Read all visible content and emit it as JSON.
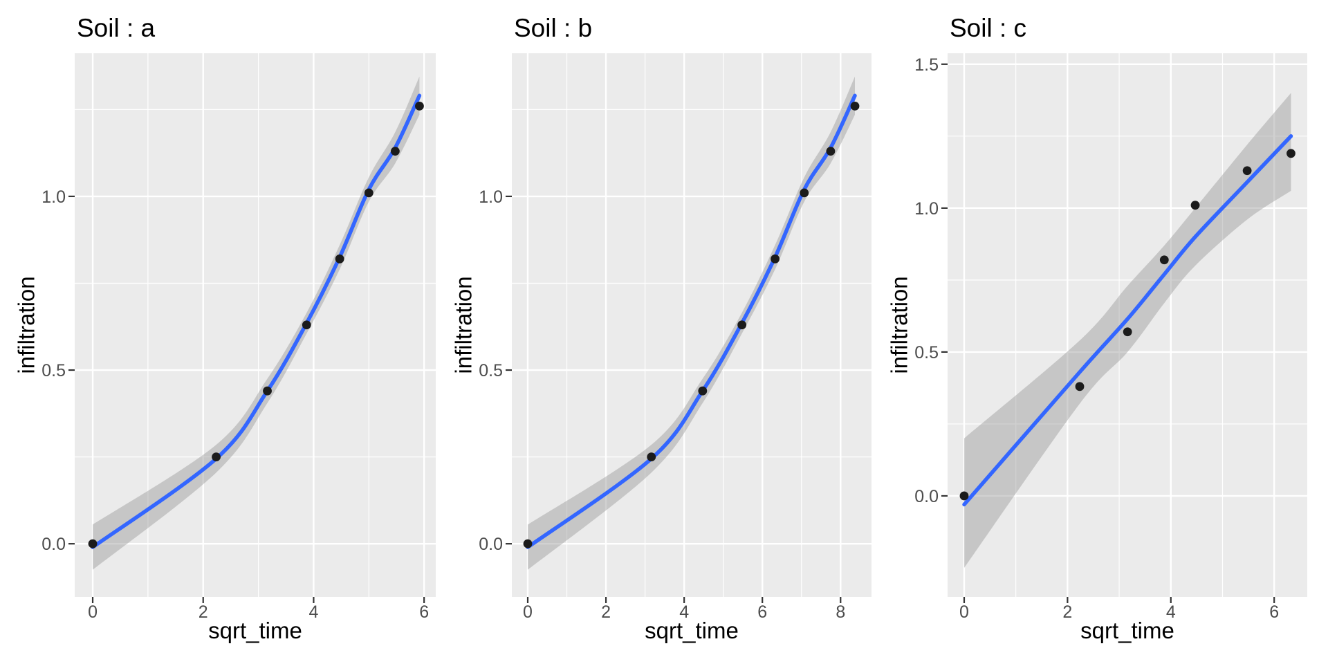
{
  "figure": {
    "background": "#ffffff",
    "grid": true,
    "legend": "none"
  },
  "colors": {
    "panel_bg": "#ebebeb",
    "grid": "#ffffff",
    "point": "#1b1b1b",
    "smooth_line": "#3366ff",
    "ribbon": "#999999",
    "ribbon_opacity": 0.45,
    "tick_mark": "#333333",
    "tick_label": "#4d4d4d",
    "axis_title": "#000000",
    "title": "#000000"
  },
  "chart_data": [
    {
      "type": "scatter",
      "title": "Soil : a",
      "xlabel": "sqrt_time",
      "ylabel": "infiltration",
      "x": [
        0,
        2.236,
        3.162,
        3.873,
        4.472,
        5.0,
        5.477,
        5.916
      ],
      "y": [
        0,
        0.25,
        0.44,
        0.63,
        0.82,
        1.01,
        1.13,
        1.26
      ],
      "smooth": {
        "x": [
          0,
          2.236,
          3.162,
          3.873,
          4.472,
          5.0,
          5.477,
          5.916
        ],
        "y": [
          -0.01,
          0.245,
          0.44,
          0.635,
          0.825,
          1.02,
          1.14,
          1.29
        ],
        "lo": [
          -0.075,
          0.205,
          0.405,
          0.605,
          0.79,
          0.985,
          1.095,
          1.235
        ],
        "hi": [
          0.055,
          0.285,
          0.475,
          0.665,
          0.86,
          1.055,
          1.185,
          1.345
        ]
      },
      "xlim": [
        -0.326,
        6.211
      ],
      "ylim": [
        -0.153,
        1.412
      ],
      "xticks": [
        0,
        2,
        4,
        6
      ],
      "xtick_labels": [
        "0",
        "2",
        "4",
        "6"
      ],
      "xminor": [
        1,
        3,
        5
      ],
      "yticks": [
        0,
        0.5,
        1.0
      ],
      "ytick_labels": [
        "0.0",
        "0.5",
        "1.0"
      ],
      "yminor": [
        0.25,
        0.75,
        1.25
      ]
    },
    {
      "type": "scatter",
      "title": "Soil : b",
      "xlabel": "sqrt_time",
      "ylabel": "infiltration",
      "x": [
        0,
        3.162,
        4.472,
        5.477,
        6.325,
        7.071,
        7.746,
        8.367
      ],
      "y": [
        0,
        0.25,
        0.44,
        0.63,
        0.82,
        1.01,
        1.13,
        1.26
      ],
      "smooth": {
        "x": [
          0,
          3.162,
          4.472,
          5.477,
          6.325,
          7.071,
          7.746,
          8.367
        ],
        "y": [
          -0.01,
          0.245,
          0.44,
          0.635,
          0.825,
          1.02,
          1.14,
          1.29
        ],
        "lo": [
          -0.075,
          0.205,
          0.405,
          0.605,
          0.79,
          0.985,
          1.095,
          1.235
        ],
        "hi": [
          0.055,
          0.285,
          0.475,
          0.665,
          0.86,
          1.055,
          1.185,
          1.345
        ]
      },
      "xlim": [
        -0.407,
        8.791
      ],
      "ylim": [
        -0.153,
        1.412
      ],
      "xticks": [
        0,
        2,
        4,
        6,
        8
      ],
      "xtick_labels": [
        "0",
        "2",
        "4",
        "6",
        "8"
      ],
      "xminor": [
        1,
        3,
        5,
        7
      ],
      "yticks": [
        0,
        0.5,
        1.0
      ],
      "ytick_labels": [
        "0.0",
        "0.5",
        "1.0"
      ],
      "yminor": [
        0.25,
        0.75,
        1.25
      ]
    },
    {
      "type": "scatter",
      "title": "Soil : c",
      "xlabel": "sqrt_time",
      "ylabel": "infiltration",
      "x": [
        0,
        2.236,
        3.162,
        3.873,
        4.472,
        5.477,
        6.325
      ],
      "y": [
        0,
        0.38,
        0.57,
        0.82,
        1.01,
        1.13,
        1.19
      ],
      "smooth": {
        "x": [
          0,
          2.236,
          3.162,
          3.873,
          4.472,
          5.477,
          6.325
        ],
        "y": [
          -0.03,
          0.43,
          0.615,
          0.77,
          0.9,
          1.09,
          1.25
        ],
        "lo": [
          -0.25,
          0.32,
          0.5,
          0.67,
          0.8,
          0.96,
          1.06
        ],
        "hi": [
          0.2,
          0.54,
          0.73,
          0.87,
          1.0,
          1.22,
          1.4
        ]
      },
      "xlim": [
        -0.321,
        6.64
      ],
      "ylim": [
        -0.351,
        1.538
      ],
      "xticks": [
        0,
        2,
        4,
        6
      ],
      "xtick_labels": [
        "0",
        "2",
        "4",
        "6"
      ],
      "xminor": [
        1,
        3,
        5
      ],
      "yticks": [
        0,
        0.5,
        1.0,
        1.5
      ],
      "ytick_labels": [
        "0.0",
        "0.5",
        "1.0",
        "1.5"
      ],
      "yminor": [
        0.25,
        0.75,
        1.25
      ]
    }
  ]
}
